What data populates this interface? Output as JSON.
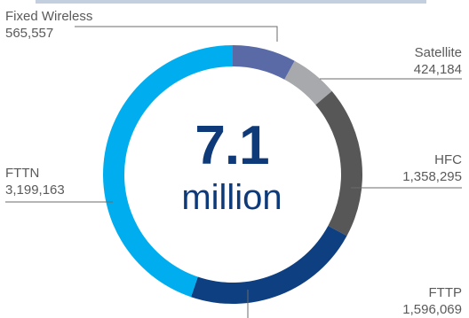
{
  "center": {
    "value": "7.1",
    "unit": "million"
  },
  "chart_data": {
    "type": "pie",
    "donut": true,
    "start": "top",
    "direction": "clockwise",
    "slices": [
      {
        "name": "Fixed Wireless",
        "label": "Fixed Wireless",
        "display": "565,557",
        "value": 565557,
        "color": "#5a6aa6"
      },
      {
        "name": "Satellite",
        "label": "Satellite",
        "display": "424,184",
        "value": 424184,
        "color": "#a8a9ac"
      },
      {
        "name": "HFC",
        "label": "HFC",
        "display": "1,358,295",
        "value": 1358295,
        "color": "#575757"
      },
      {
        "name": "FTTP",
        "label": "FTTP",
        "display": "1,596,069",
        "value": 1596069,
        "color": "#0e3f80"
      },
      {
        "name": "FTTN",
        "label": "FTTN",
        "display": "3,199,163",
        "value": 3199163,
        "color": "#00aeef"
      }
    ]
  }
}
